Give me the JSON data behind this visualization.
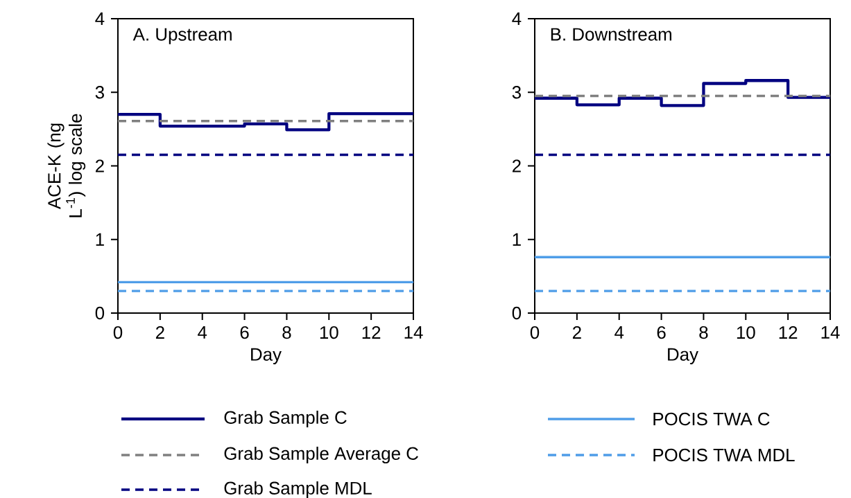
{
  "chart_data": [
    {
      "type": "step",
      "title": "A. Upstream",
      "xlabel": "Day",
      "ylabel": "ACE-K (ng L$^{-1}$) log scale",
      "xlim": [
        0,
        14
      ],
      "ylim": [
        0,
        4
      ],
      "xticks": [
        0,
        2,
        4,
        6,
        8,
        10,
        12,
        14
      ],
      "yticks": [
        0,
        1,
        2,
        3,
        4
      ],
      "legend": "bottom",
      "series": [
        {
          "name": "Grab Sample C",
          "color": "#000080",
          "line_style": "solid",
          "x": [
            0,
            2,
            4,
            6,
            8,
            10,
            12,
            14
          ],
          "values": [
            2.7,
            2.54,
            2.54,
            2.57,
            2.49,
            2.71,
            2.71,
            2.71
          ]
        },
        {
          "name": "Grab Sample Average C",
          "color": "#808080",
          "line_style": "dashed",
          "x": [
            0,
            14
          ],
          "values": [
            2.61,
            2.61
          ]
        },
        {
          "name": "Grab Sample MDL",
          "color": "#000080",
          "line_style": "dashed",
          "x": [
            0,
            14
          ],
          "values": [
            2.15,
            2.15
          ]
        },
        {
          "name": "POCIS TWA C",
          "color": "#4f9de8",
          "line_style": "solid",
          "x": [
            0,
            14
          ],
          "values": [
            0.42,
            0.42
          ]
        },
        {
          "name": "POCIS TWA MDL",
          "color": "#4f9de8",
          "line_style": "dashed",
          "x": [
            0,
            14
          ],
          "values": [
            0.3,
            0.3
          ]
        }
      ]
    },
    {
      "type": "step",
      "title": "B. Downstream",
      "xlabel": "Day",
      "xlim": [
        0,
        14
      ],
      "ylim": [
        0,
        4
      ],
      "xticks": [
        0,
        2,
        4,
        6,
        8,
        10,
        12,
        14
      ],
      "yticks": [
        0,
        1,
        2,
        3,
        4
      ],
      "series": [
        {
          "color": "#000080",
          "line_style": "solid",
          "x": [
            0,
            2,
            4,
            6,
            8,
            10,
            12,
            14
          ],
          "values": [
            2.92,
            2.83,
            2.92,
            2.82,
            3.12,
            3.16,
            2.93,
            2.93
          ]
        },
        {
          "color": "#808080",
          "line_style": "dashed",
          "x": [
            0,
            14
          ],
          "values": [
            2.95,
            2.95
          ]
        },
        {
          "color": "#000080",
          "line_style": "dashed",
          "x": [
            0,
            14
          ],
          "values": [
            2.15,
            2.15
          ]
        },
        {
          "color": "#4f9de8",
          "line_style": "solid",
          "x": [
            0,
            14
          ],
          "values": [
            0.76,
            0.76
          ]
        },
        {
          "color": "#4f9de8",
          "line_style": "dashed",
          "x": [
            0,
            14
          ],
          "values": [
            0.3,
            0.3
          ]
        }
      ]
    }
  ]
}
